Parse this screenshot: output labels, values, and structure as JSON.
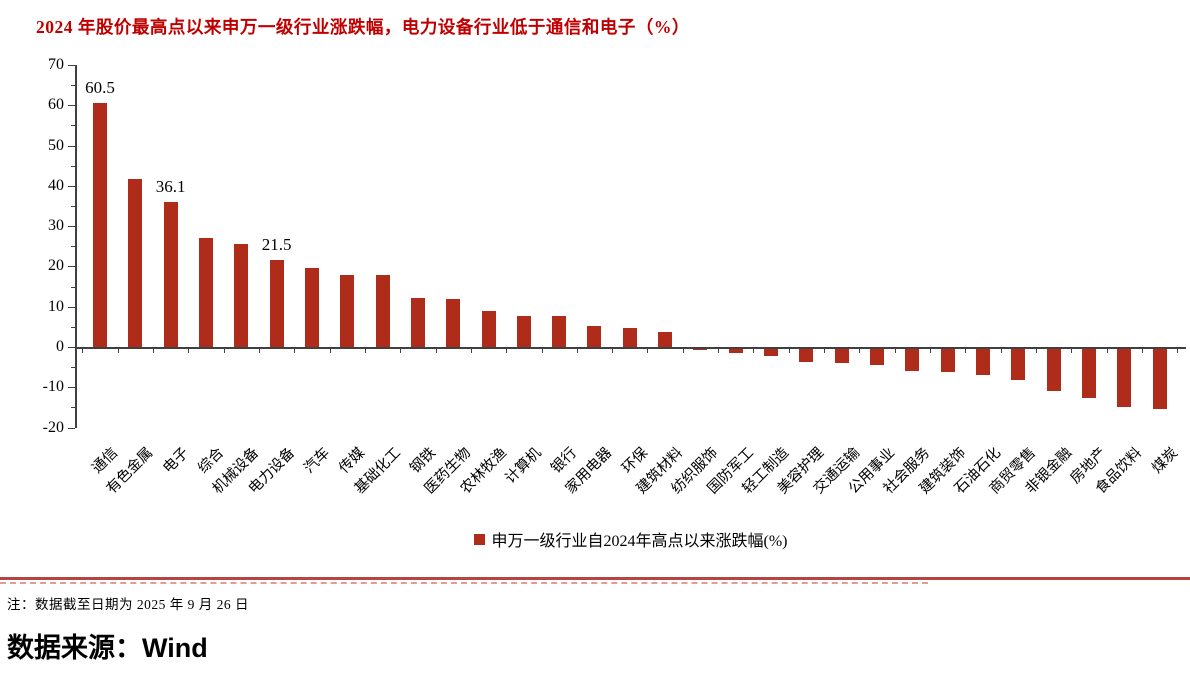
{
  "title": "2024 年股价最高点以来申万一级行业涨跌幅，电力设备行业低于通信和电子（%）",
  "colors": {
    "bar": "#b02c1a",
    "title": "#c00000",
    "axis": "#404040",
    "divider_solid": "#b5453e",
    "divider_dash": "#e59b94"
  },
  "chart_data": {
    "type": "bar",
    "title": "2024 年股价最高点以来申万一级行业涨跌幅，电力设备行业低于通信和电子（%）",
    "categories": [
      "通信",
      "有色金属",
      "电子",
      "综合",
      "机械设备",
      "电力设备",
      "汽车",
      "传媒",
      "基础化工",
      "钢铁",
      "医药生物",
      "农林牧渔",
      "计算机",
      "银行",
      "家用电器",
      "环保",
      "建筑材料",
      "纺织服饰",
      "国防军工",
      "轻工制造",
      "美容护理",
      "交通运输",
      "公用事业",
      "社会服务",
      "建筑装饰",
      "石油石化",
      "商贸零售",
      "非银金融",
      "房地产",
      "食品饮料",
      "煤炭"
    ],
    "values": [
      60.5,
      41.6,
      36.1,
      27.0,
      25.6,
      21.5,
      19.5,
      17.9,
      17.8,
      12.1,
      11.8,
      9.0,
      7.6,
      7.8,
      5.3,
      4.6,
      3.6,
      -0.3,
      -1.2,
      -1.8,
      -3.4,
      -3.7,
      -4.2,
      -5.5,
      -5.9,
      -6.6,
      -7.7,
      -10.6,
      -12.4,
      -14.4,
      -14.9
    ],
    "data_labels": {
      "0": "60.5",
      "2": "36.1",
      "5": "21.5"
    },
    "ylim": [
      -20,
      70
    ],
    "yticks": [
      70,
      60,
      50,
      40,
      30,
      20,
      10,
      0,
      -10,
      -20
    ],
    "grid": false,
    "legend": "申万一级行业自2024年高点以来涨跌幅(%)",
    "legend_position": "bottom-center",
    "xlabel": "",
    "ylabel": ""
  },
  "footer": {
    "note": "注：数据截至日期为 2025 年 9 月 26 日",
    "source": "数据来源：Wind"
  }
}
